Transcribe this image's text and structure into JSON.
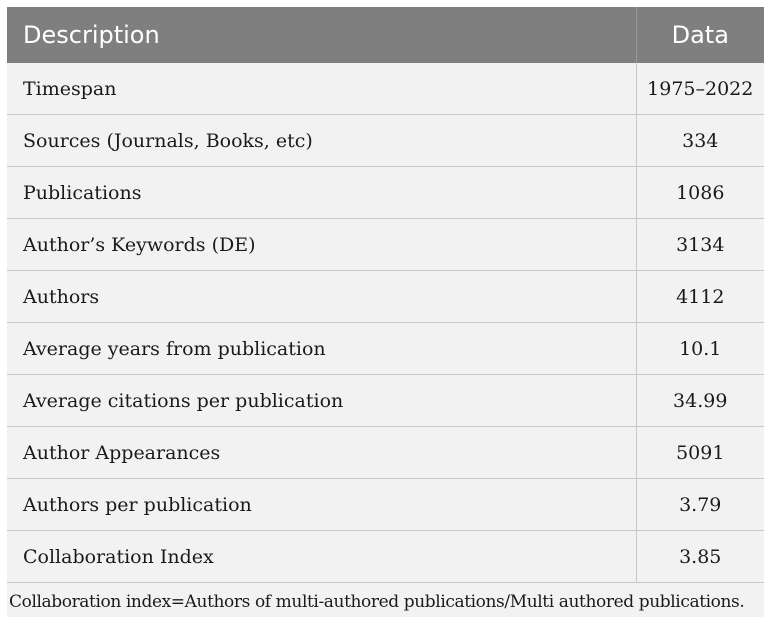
{
  "table": {
    "headers": {
      "description": "Description",
      "data": "Data"
    },
    "rows": [
      {
        "description": "Timespan",
        "value": "1975–2022"
      },
      {
        "description": "Sources (Journals, Books, etc)",
        "value": "334"
      },
      {
        "description": "Publications",
        "value": "1086"
      },
      {
        "description": "Author’s Keywords (DE)",
        "value": "3134"
      },
      {
        "description": "Authors",
        "value": "4112"
      },
      {
        "description": "Average years from publication",
        "value": "10.1"
      },
      {
        "description": "Average citations per publication",
        "value": "34.99"
      },
      {
        "description": "Author Appearances",
        "value": "5091"
      },
      {
        "description": "Authors per publication",
        "value": "3.79"
      },
      {
        "description": "Collaboration Index",
        "value": "3.85"
      }
    ]
  },
  "footnote": "Collaboration index=Authors of multi-authored publications/Multi authored publications.",
  "colors": {
    "header_bg": "#7f7f7f",
    "header_text": "#ffffff",
    "body_bg": "#f2f2f2",
    "rule": "#c8c8c8"
  }
}
